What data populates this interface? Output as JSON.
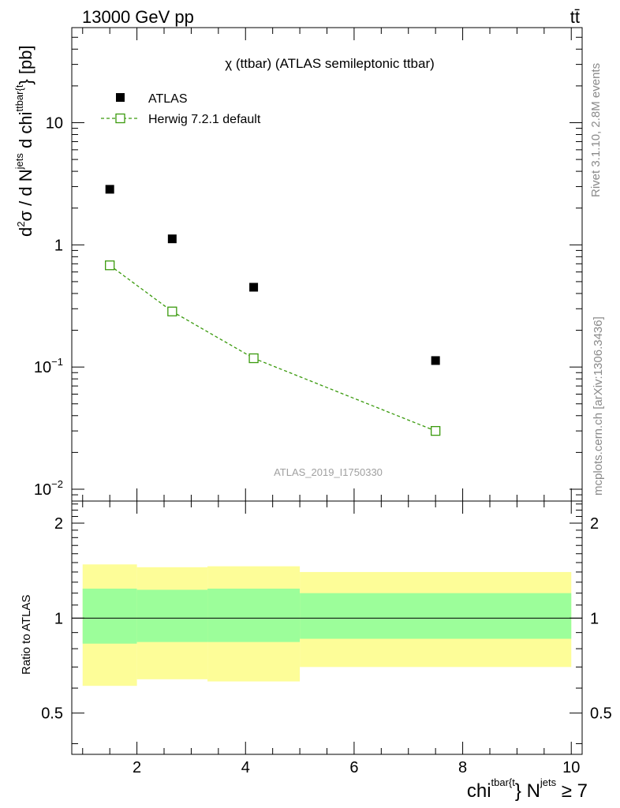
{
  "header": {
    "energy_label": "13000 GeV pp",
    "process_label": "tt̄"
  },
  "side": {
    "rivet_label": "Rivet 3.1.10,  2.8M events",
    "mcplots_label": "mcplots.cern.ch [arXiv:1306.3436]"
  },
  "analysis_id": "ATLAS_2019_I1750330",
  "chart_data": {
    "type": "scatter",
    "title": "χ (ttbar) (ATLAS semileptonic ttbar)",
    "xlim": [
      0.8,
      10.2
    ],
    "ylim_main": [
      0.008,
      60
    ],
    "ylim_ratio": [
      0.37,
      2.35
    ],
    "x_ticks": [
      2,
      4,
      6,
      8,
      10
    ],
    "y_ticks_main": [
      {
        "value": 0.01,
        "base": "10",
        "exp": "−2"
      },
      {
        "value": 0.1,
        "base": "10",
        "exp": "−1"
      },
      {
        "value": 1,
        "base": "1",
        "exp": ""
      },
      {
        "value": 10,
        "base": "10",
        "exp": ""
      }
    ],
    "y_ticks_ratio": [
      {
        "value": 0.5,
        "label": "0.5"
      },
      {
        "value": 1,
        "label": "1"
      },
      {
        "value": 2,
        "label": "2"
      }
    ],
    "ylabel_main": {
      "p1": "d",
      "sup1": "2",
      "p2": "σ / d N",
      "sup2": "jets",
      "p3": " d chi",
      "sup3": "ttbar{t",
      "p4": "} [pb]"
    },
    "ylabel_ratio": "Ratio to ATLAS",
    "xlabel": {
      "p1": "chi",
      "sup1": "tbar{t",
      "p2": "} N",
      "sup2": "jets",
      "p3": " ≥ 7"
    },
    "series": [
      {
        "name": "ATLAS",
        "marker": "filled-square",
        "color": "#000000",
        "x": [
          1.5,
          2.65,
          4.15,
          7.5
        ],
        "y": [
          2.85,
          1.12,
          0.45,
          0.113
        ]
      },
      {
        "name": "Herwig 7.2.1 default",
        "marker": "open-square",
        "line": "dashed",
        "color": "#3a9a0d",
        "x": [
          1.5,
          2.65,
          4.15,
          7.5
        ],
        "y": [
          0.68,
          0.285,
          0.118,
          0.03
        ]
      }
    ],
    "ratio_bands": [
      {
        "x_lo": 1.0,
        "x_hi": 2.0,
        "yellow": [
          0.61,
          1.48
        ],
        "green": [
          0.83,
          1.24
        ]
      },
      {
        "x_lo": 2.0,
        "x_hi": 3.3,
        "yellow": [
          0.64,
          1.45
        ],
        "green": [
          0.84,
          1.23
        ]
      },
      {
        "x_lo": 3.3,
        "x_hi": 5.0,
        "yellow": [
          0.63,
          1.46
        ],
        "green": [
          0.84,
          1.24
        ]
      },
      {
        "x_lo": 5.0,
        "x_hi": 10.0,
        "yellow": [
          0.7,
          1.4
        ],
        "green": [
          0.86,
          1.2
        ]
      }
    ],
    "colors": {
      "band_yellow": "#fdfd98",
      "band_green": "#9cfe9a",
      "data": "#000000",
      "mc": "#3a9a0d"
    }
  }
}
